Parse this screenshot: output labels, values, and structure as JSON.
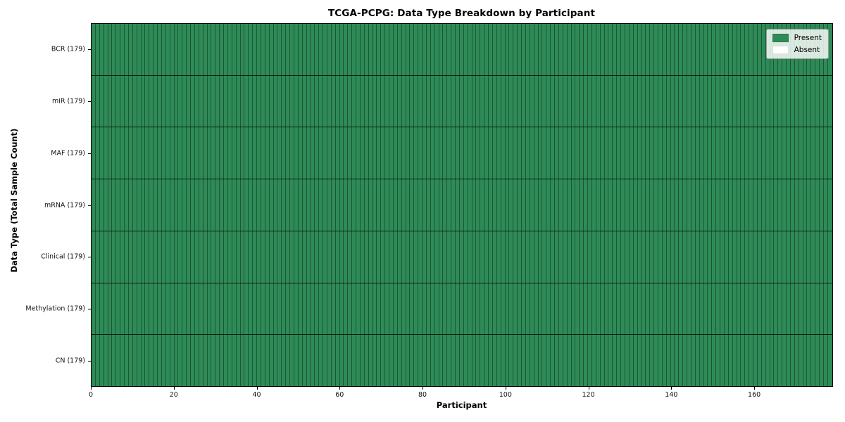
{
  "chart_data": {
    "type": "heatmap",
    "title": "TCGA-PCPG: Data Type Breakdown by Participant",
    "xlabel": "Participant",
    "ylabel": "Data Type (Total Sample Count)",
    "x_range": [
      0,
      179
    ],
    "n_participants": 179,
    "x_ticks": [
      0,
      20,
      40,
      60,
      80,
      100,
      120,
      140,
      160
    ],
    "rows": [
      {
        "label": "BCR (179)",
        "data_type": "BCR",
        "total_samples": 179,
        "present": 179,
        "absent": 0
      },
      {
        "label": "miR (179)",
        "data_type": "miR",
        "total_samples": 179,
        "present": 179,
        "absent": 0
      },
      {
        "label": "MAF (179)",
        "data_type": "MAF",
        "total_samples": 179,
        "present": 179,
        "absent": 0
      },
      {
        "label": "mRNA (179)",
        "data_type": "mRNA",
        "total_samples": 179,
        "present": 179,
        "absent": 0
      },
      {
        "label": "Clinical (179)",
        "data_type": "Clinical",
        "total_samples": 179,
        "present": 179,
        "absent": 0
      },
      {
        "label": "Methylation (179)",
        "data_type": "Methylation",
        "total_samples": 179,
        "present": 179,
        "absent": 0
      },
      {
        "label": "CN (179)",
        "data_type": "CN",
        "total_samples": 179,
        "present": 179,
        "absent": 0
      }
    ],
    "legend": [
      {
        "label": "Present",
        "color": "#2e8b57"
      },
      {
        "label": "Absent",
        "color": "#ffffff"
      }
    ],
    "colors": {
      "present": "#2e8b57",
      "absent": "#ffffff"
    },
    "legend_position": "upper right",
    "grid": false
  }
}
